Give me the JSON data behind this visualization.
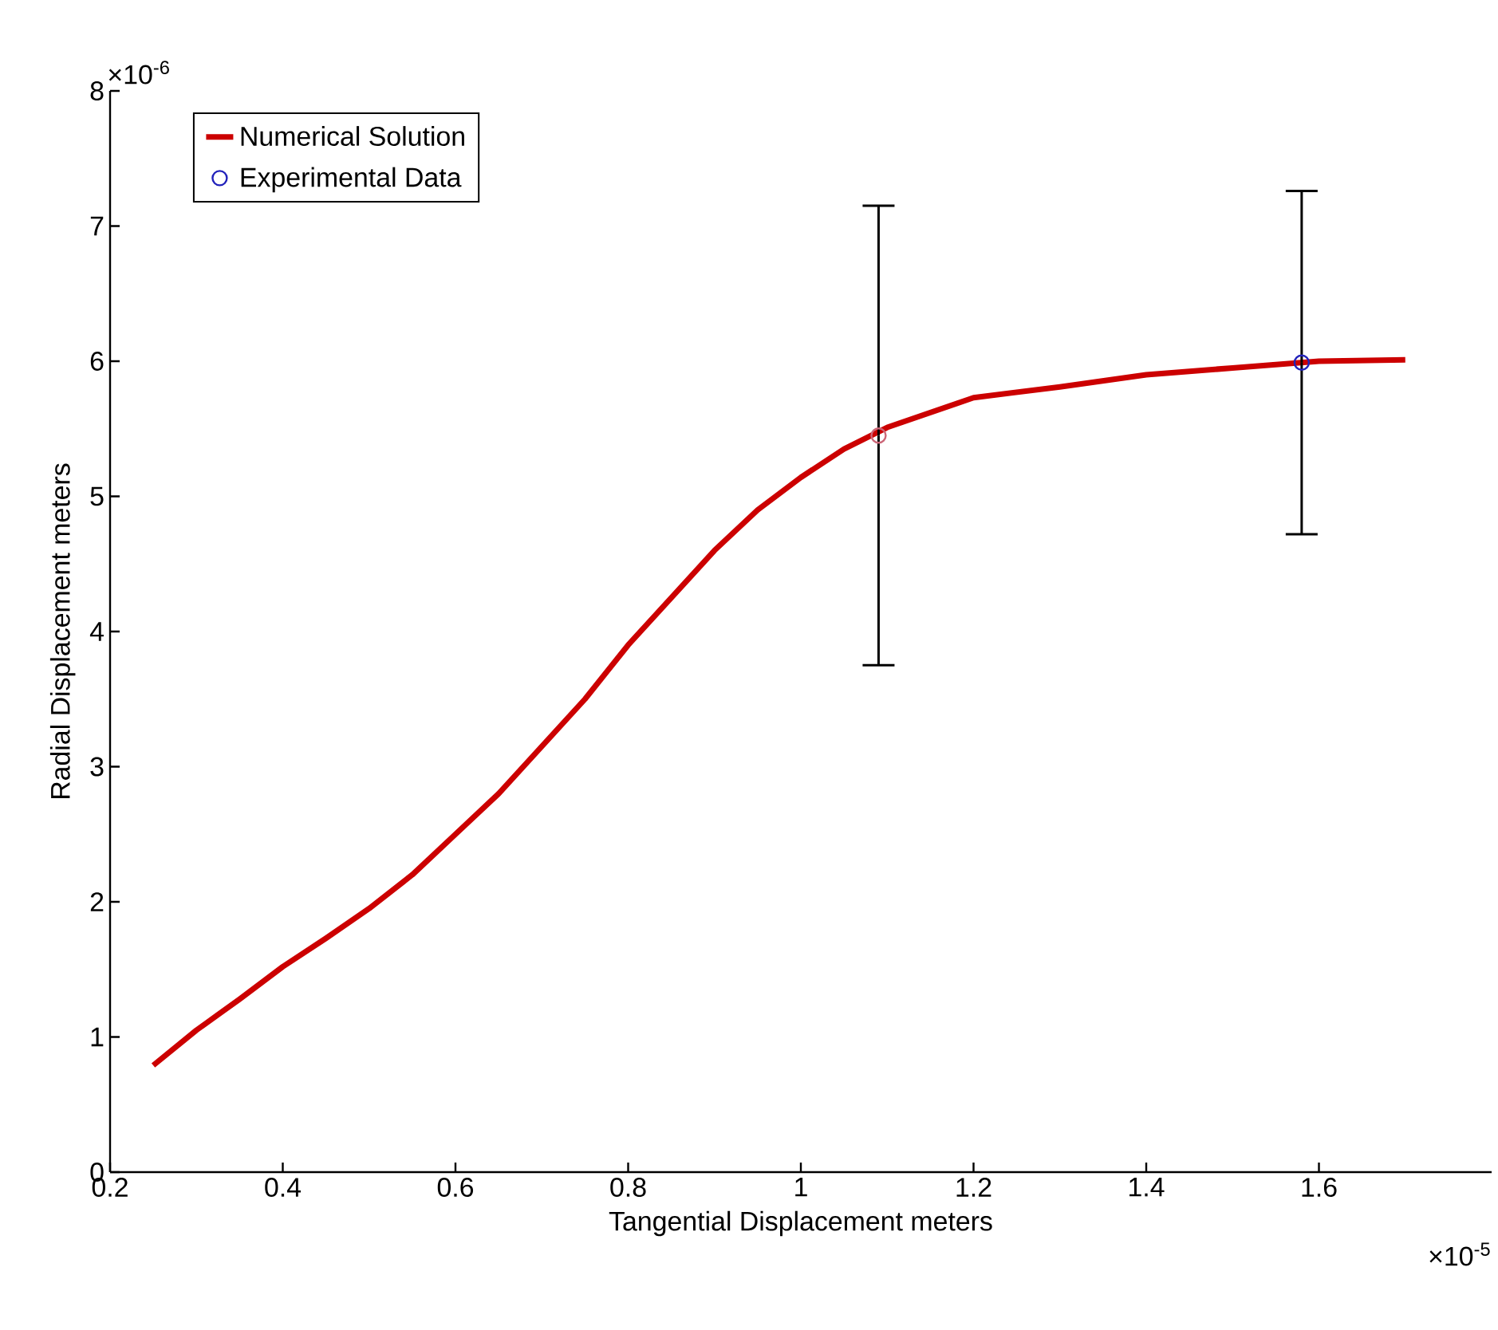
{
  "chart_data": {
    "type": "line",
    "xlabel": "Tangential Displacement meters",
    "ylabel": "Radial Displacement meters",
    "xlim": [
      0.2,
      1.8
    ],
    "xticks": [
      0.2,
      0.4,
      0.6,
      0.8,
      1,
      1.2,
      1.4,
      1.6
    ],
    "ylim": [
      0,
      8
    ],
    "yticks": [
      0,
      1,
      2,
      3,
      4,
      5,
      6,
      7,
      8
    ],
    "legend": "top left",
    "grid": false,
    "annotations": [
      "×10$^{-6}$",
      "×10$^{-5}$"
    ],
    "series": [
      {
        "name": "Numerical Solution",
        "color": "#cc0000",
        "line_style": "solid",
        "marker": "none",
        "x": [
          0.25,
          0.3,
          0.35,
          0.4,
          0.45,
          0.5,
          0.55,
          0.6,
          0.65,
          0.7,
          0.75,
          0.8,
          0.85,
          0.9,
          0.95,
          1.0,
          1.05,
          1.1,
          1.2,
          1.3,
          1.4,
          1.5,
          1.6,
          1.7
        ],
        "values": [
          0.79,
          1.05,
          1.28,
          1.52,
          1.73,
          1.95,
          2.2,
          2.5,
          2.8,
          3.15,
          3.5,
          3.9,
          4.25,
          4.6,
          4.9,
          5.14,
          5.35,
          5.51,
          5.73,
          5.81,
          5.9,
          5.95,
          6.0,
          6.01
        ]
      },
      {
        "name": "Experimental Data",
        "type": "scatter",
        "marker": "circle",
        "colors": [
          "#cc6677",
          "#2222bb"
        ],
        "x": [
          1.09,
          1.58
        ],
        "values": [
          5.45,
          5.99
        ],
        "errors": [
          1.7,
          1.27
        ]
      }
    ]
  }
}
